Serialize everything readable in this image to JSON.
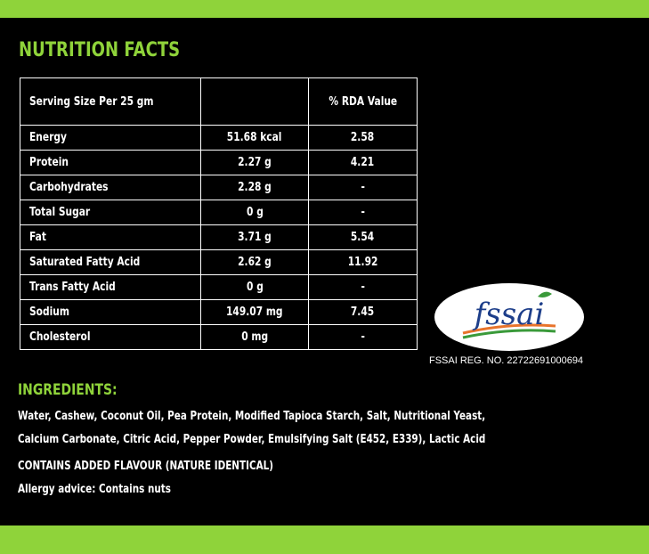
{
  "colors": {
    "accent": "#8fd33a",
    "background": "#000000",
    "text": "#ffffff",
    "fssai_orange": "#e8742c",
    "fssai_green": "#3a9a3a",
    "fssai_blue": "#1d3e8a"
  },
  "heading": "NUTRITION FACTS",
  "table": {
    "header": [
      "Serving Size Per 25 gm",
      "",
      "% RDA Value"
    ],
    "rows": [
      [
        "Energy",
        "51.68 kcal",
        "2.58"
      ],
      [
        "Protein",
        "2.27 g",
        "4.21"
      ],
      [
        "Carbohydrates",
        "2.28 g",
        "-"
      ],
      [
        "Total Sugar",
        "0 g",
        "-"
      ],
      [
        "Fat",
        "3.71 g",
        "5.54"
      ],
      [
        "Saturated Fatty Acid",
        "2.62 g",
        "11.92"
      ],
      [
        "Trans Fatty Acid",
        "0 g",
        "-"
      ],
      [
        "Sodium",
        "149.07 mg",
        "7.45"
      ],
      [
        "Cholesterol",
        "0 mg",
        "-"
      ]
    ]
  },
  "logo": {
    "text": "fssai",
    "icon": "fssai-logo-icon"
  },
  "fssai_reg": "FSSAI REG. NO. 22722691000694",
  "ingredients": {
    "heading": "INGREDIENTS:",
    "line1": "Water, Cashew, Coconut Oil, Pea Protein, Modified Tapioca Starch, Salt, Nutritional Yeast,",
    "line2": "Calcium Carbonate, Citric Acid, Pepper Powder, Emulsifying Salt (E452, E339), Lactic Acid",
    "flavour": "CONTAINS ADDED FLAVOUR (NATURE IDENTICAL)",
    "allergy": "Allergy advice: Contains nuts"
  }
}
